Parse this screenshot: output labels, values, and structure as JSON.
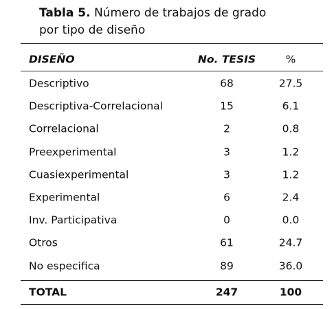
{
  "header": {
    "label": "Tabla 5.",
    "title_line1": "Número de trabajos de grado",
    "title_line2": "por tipo de diseño"
  },
  "table": {
    "columns": [
      "DISEÑO",
      "No. TESIS",
      "%"
    ],
    "rows": [
      [
        "Descriptivo",
        "68",
        "27.5"
      ],
      [
        "Descriptiva-Correlacional",
        "15",
        "6.1"
      ],
      [
        "Correlacional",
        "2",
        "0.8"
      ],
      [
        "Preexperimental",
        "3",
        "1.2"
      ],
      [
        "Cuasiexperimental",
        "3",
        "1.2"
      ],
      [
        "Experimental",
        "6",
        "2.4"
      ],
      [
        "Inv. Participativa",
        "0",
        "0.0"
      ],
      [
        "Otros",
        "61",
        "24.7"
      ],
      [
        "No especifica",
        "89",
        "36.0"
      ]
    ],
    "total": [
      "TOTAL",
      "247",
      "100"
    ]
  }
}
